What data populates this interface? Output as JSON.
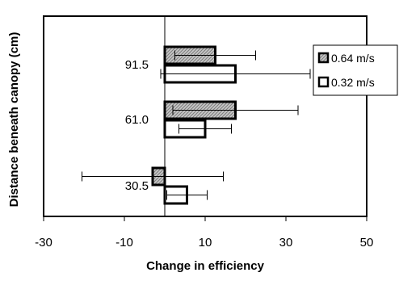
{
  "chart_data": {
    "type": "bar",
    "orientation": "horizontal",
    "title": "",
    "xlabel": "Change in efficiency",
    "ylabel": "Distance beneath canopy (cm)",
    "xlim": [
      -30,
      50
    ],
    "xticks": [
      -30,
      -10,
      10,
      30,
      50
    ],
    "categories": [
      "91.5",
      "61.0",
      "30.5"
    ],
    "series": [
      {
        "name": "0.64 m/s",
        "fill": "hatched gray",
        "values": [
          12.5,
          17.5,
          -3.0
        ],
        "error": [
          10.0,
          15.5,
          17.5
        ]
      },
      {
        "name": "0.32 m/s",
        "fill": "white",
        "values": [
          17.5,
          10.0,
          5.5
        ],
        "error": [
          18.5,
          6.5,
          5.0
        ]
      }
    ],
    "grid": false,
    "legend": "right"
  },
  "colors": {
    "outline": "#000000",
    "hatch_bg": "#c8c8c8",
    "hatch_line": "#7a7a7a",
    "open_fill": "#ffffff"
  }
}
